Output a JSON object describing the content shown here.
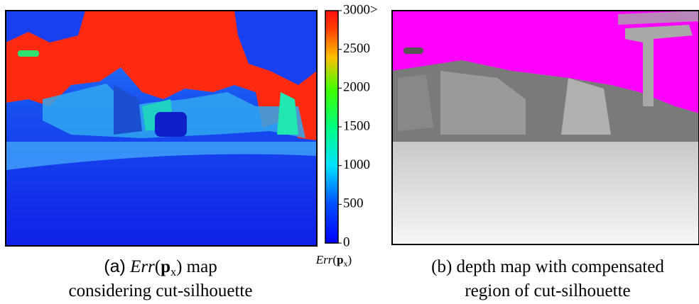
{
  "panel_a": {
    "caption_line1": {
      "prefix": "(a)",
      "symbol": "Err",
      "open": "(",
      "arg": "p",
      "sub": "x",
      "close": ")",
      "suffix": "map"
    },
    "caption_line2": "considering cut-silhouette"
  },
  "colorbar": {
    "label": {
      "symbol": "Err",
      "open": "(",
      "arg": "p",
      "sub": "x",
      "close": ")"
    },
    "range": [
      0,
      3000
    ],
    "ticks": [
      0,
      500,
      1000,
      1500,
      2000,
      2500,
      {
        "value": 3000,
        "label": "3000>"
      }
    ]
  },
  "panel_b": {
    "caption_line1": "(b) depth map with compensated",
    "caption_line2": "region of cut-silhouette"
  }
}
